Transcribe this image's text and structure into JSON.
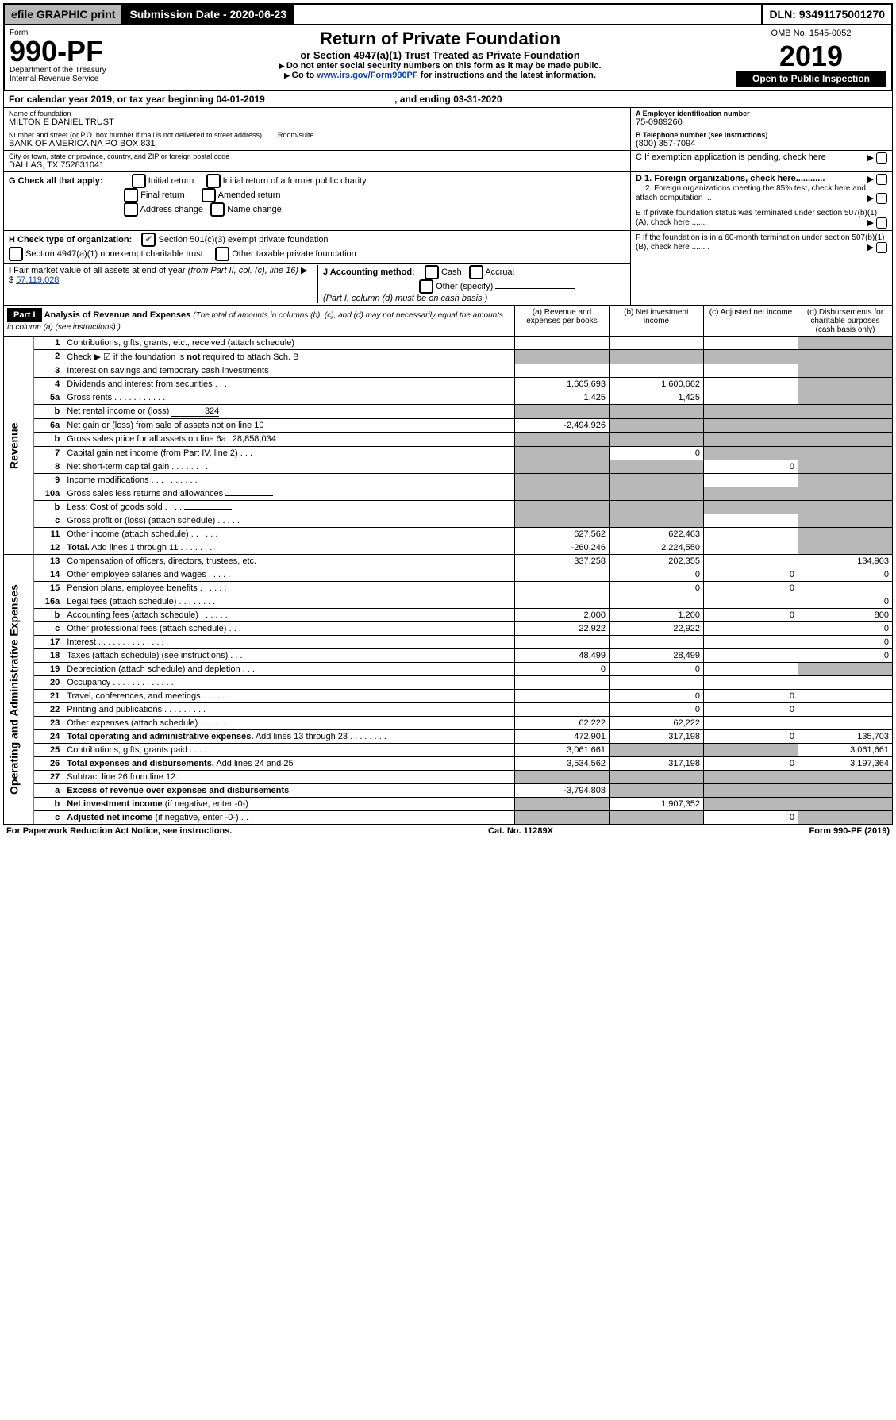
{
  "topbar": {
    "efile": "efile GRAPHIC print",
    "submission_label": "Submission Date - 2020-06-23",
    "dln": "DLN: 93491175001270"
  },
  "header": {
    "form_word": "Form",
    "form_no": "990-PF",
    "dept": "Department of the Treasury",
    "irs": "Internal Revenue Service",
    "title": "Return of Private Foundation",
    "subtitle": "or Section 4947(a)(1) Trust Treated as Private Foundation",
    "note1": "Do not enter social security numbers on this form as it may be made public.",
    "note2_prefix": "Go to ",
    "note2_link": "www.irs.gov/Form990PF",
    "note2_suffix": " for instructions and the latest information.",
    "omb": "OMB No. 1545-0052",
    "year": "2019",
    "open_inspect": "Open to Public Inspection"
  },
  "cal_year": {
    "prefix": "For calendar year 2019, or tax year beginning ",
    "begin": "04-01-2019",
    "mid": " , and ending ",
    "end": "03-31-2020"
  },
  "entity": {
    "name_label": "Name of foundation",
    "name": "MILTON E DANIEL TRUST",
    "addr_label": "Number and street (or P.O. box number if mail is not delivered to street address)",
    "addr": "BANK OF AMERICA NA PO BOX 831",
    "room_label": "Room/suite",
    "city_label": "City or town, state or province, country, and ZIP or foreign postal code",
    "city": "DALLAS, TX  752831041",
    "ein_label": "A Employer identification number",
    "ein": "75-0989260",
    "tel_label": "B Telephone number (see instructions)",
    "tel": "(800) 357-7094",
    "c_label": "C If exemption application is pending, check here",
    "d1_label": "D 1. Foreign organizations, check here............",
    "d2_label": "2. Foreign organizations meeting the 85% test, check here and attach computation ...",
    "e_label": "E  If private foundation status was terminated under section 507(b)(1)(A), check here .......",
    "f_label": "F  If the foundation is in a 60-month termination under section 507(b)(1)(B), check here ........"
  },
  "g": {
    "label": "G Check all that apply:",
    "opts": [
      "Initial return",
      "Initial return of a former public charity",
      "Final return",
      "Amended return",
      "Address change",
      "Name change"
    ]
  },
  "h": {
    "label": "H Check type of organization:",
    "opt1": "Section 501(c)(3) exempt private foundation",
    "opt2": "Section 4947(a)(1) nonexempt charitable trust",
    "opt3": "Other taxable private foundation"
  },
  "i": {
    "label": "I Fair market value of all assets at end of year (from Part II, col. (c), line 16) ▶ $",
    "value": "57,119,028"
  },
  "j": {
    "label": "J Accounting method:",
    "cash": "Cash",
    "accrual": "Accrual",
    "other": "Other (specify)",
    "note": "(Part I, column (d) must be on cash basis.)"
  },
  "part1": {
    "label": "Part I",
    "title": "Analysis of Revenue and Expenses",
    "title_note": "(The total of amounts in columns (b), (c), and (d) may not necessarily equal the amounts in column (a) (see instructions).)",
    "col_a": "(a)   Revenue and expenses per books",
    "col_b": "(b)  Net investment income",
    "col_c": "(c)  Adjusted net income",
    "col_d": "(d)  Disbursements for charitable purposes (cash basis only)",
    "side_revenue": "Revenue",
    "side_expenses": "Operating and Administrative Expenses"
  },
  "rows": [
    {
      "no": "1",
      "desc": "Contributions, gifts, grants, etc., received (attach schedule)",
      "a": "",
      "b": "",
      "c": "",
      "d": "sh"
    },
    {
      "no": "2",
      "desc": "Check ▶ ☑ if the foundation is <b>not</b> required to attach Sch. B",
      "a": "sh",
      "b": "sh",
      "c": "sh",
      "d": "sh",
      "checkmark": true
    },
    {
      "no": "3",
      "desc": "Interest on savings and temporary cash investments",
      "a": "",
      "b": "",
      "c": "",
      "d": "sh"
    },
    {
      "no": "4",
      "desc": "Dividends and interest from securities   .  .  .",
      "a": "1,605,693",
      "b": "1,600,662",
      "c": "",
      "d": "sh"
    },
    {
      "no": "5a",
      "desc": "Gross rents       .  .  .  .  .  .  .  .  .  .  .",
      "a": "1,425",
      "b": "1,425",
      "c": "",
      "d": "sh"
    },
    {
      "no": "b",
      "desc": "Net rental income or (loss)",
      "a": "sh",
      "b": "sh",
      "c": "sh",
      "d": "sh",
      "inline": "324"
    },
    {
      "no": "6a",
      "desc": "Net gain or (loss) from sale of assets not on line 10",
      "a": "-2,494,926",
      "b": "sh",
      "c": "sh",
      "d": "sh"
    },
    {
      "no": "b",
      "desc": "Gross sales price for all assets on line 6a",
      "a": "sh",
      "b": "sh",
      "c": "sh",
      "d": "sh",
      "inline": "28,858,034"
    },
    {
      "no": "7",
      "desc": "Capital gain net income (from Part IV, line 2)   .  .  .",
      "a": "sh",
      "b": "0",
      "c": "sh",
      "d": "sh"
    },
    {
      "no": "8",
      "desc": "Net short-term capital gain   .  .  .  .  .  .  .  .",
      "a": "sh",
      "b": "sh",
      "c": "0",
      "d": "sh"
    },
    {
      "no": "9",
      "desc": "Income modifications .  .  .  .  .  .  .  .  .  .",
      "a": "sh",
      "b": "sh",
      "c": "",
      "d": "sh"
    },
    {
      "no": "10a",
      "desc": "Gross sales less returns and allowances",
      "a": "sh",
      "b": "sh",
      "c": "sh",
      "d": "sh",
      "inline": " "
    },
    {
      "no": "b",
      "desc": "Less: Cost of goods sold      .  .  .  .",
      "a": "sh",
      "b": "sh",
      "c": "sh",
      "d": "sh",
      "inline": " "
    },
    {
      "no": "c",
      "desc": "Gross profit or (loss) (attach schedule)    .  .  .  .  .",
      "a": "sh",
      "b": "sh",
      "c": "",
      "d": "sh"
    },
    {
      "no": "11",
      "desc": "Other income (attach schedule)    .  .  .  .  .  .",
      "a": "627,562",
      "b": "622,463",
      "c": "",
      "d": "sh"
    },
    {
      "no": "12",
      "desc": "<b>Total.</b> Add lines 1 through 11   .  .  .  .  .  .  .",
      "a": "-260,246",
      "b": "2,224,550",
      "c": "",
      "d": "sh"
    }
  ],
  "exp_rows": [
    {
      "no": "13",
      "desc": "Compensation of officers, directors, trustees, etc.",
      "a": "337,258",
      "b": "202,355",
      "c": "",
      "d": "134,903"
    },
    {
      "no": "14",
      "desc": "Other employee salaries and wages    .  .  .  .  .",
      "a": "",
      "b": "0",
      "c": "0",
      "d": "0"
    },
    {
      "no": "15",
      "desc": "Pension plans, employee benefits  .  .  .  .  .  .",
      "a": "",
      "b": "0",
      "c": "0",
      "d": ""
    },
    {
      "no": "16a",
      "desc": "Legal fees (attach schedule) .  .  .  .  .  .  .  .",
      "a": "",
      "b": "",
      "c": "",
      "d": "0"
    },
    {
      "no": "b",
      "desc": "Accounting fees (attach schedule)  .  .  .  .  .  .",
      "a": "2,000",
      "b": "1,200",
      "c": "0",
      "d": "800"
    },
    {
      "no": "c",
      "desc": "Other professional fees (attach schedule)    .  .  .",
      "a": "22,922",
      "b": "22,922",
      "c": "",
      "d": "0"
    },
    {
      "no": "17",
      "desc": "Interest   .  .  .  .  .  .  .  .  .  .  .  .  .  .",
      "a": "",
      "b": "",
      "c": "",
      "d": "0"
    },
    {
      "no": "18",
      "desc": "Taxes (attach schedule) (see instructions)    .  .  .",
      "a": "48,499",
      "b": "28,499",
      "c": "",
      "d": "0"
    },
    {
      "no": "19",
      "desc": "Depreciation (attach schedule) and depletion   .  .  .",
      "a": "0",
      "b": "0",
      "c": "",
      "d": "sh"
    },
    {
      "no": "20",
      "desc": "Occupancy .  .  .  .  .  .  .  .  .  .  .  .  .",
      "a": "",
      "b": "",
      "c": "",
      "d": ""
    },
    {
      "no": "21",
      "desc": "Travel, conferences, and meetings .  .  .  .  .  .",
      "a": "",
      "b": "0",
      "c": "0",
      "d": ""
    },
    {
      "no": "22",
      "desc": "Printing and publications .  .  .  .  .  .  .  .  .",
      "a": "",
      "b": "0",
      "c": "0",
      "d": ""
    },
    {
      "no": "23",
      "desc": "Other expenses (attach schedule)  .  .  .  .  .  .",
      "a": "62,222",
      "b": "62,222",
      "c": "",
      "d": ""
    },
    {
      "no": "24",
      "desc": "<b>Total operating and administrative expenses.</b> Add lines 13 through 23  .  .  .  .  .  .  .  .  .",
      "a": "472,901",
      "b": "317,198",
      "c": "0",
      "d": "135,703"
    },
    {
      "no": "25",
      "desc": "Contributions, gifts, grants paid       .  .  .  .  .",
      "a": "3,061,661",
      "b": "sh",
      "c": "sh",
      "d": "3,061,661"
    },
    {
      "no": "26",
      "desc": "<b>Total expenses and disbursements.</b> Add lines 24 and 25",
      "a": "3,534,562",
      "b": "317,198",
      "c": "0",
      "d": "3,197,364"
    },
    {
      "no": "27",
      "desc": "Subtract line 26 from line 12:",
      "a": "sh",
      "b": "sh",
      "c": "sh",
      "d": "sh"
    },
    {
      "no": "a",
      "desc": "<b>Excess of revenue over expenses and disbursements</b>",
      "a": "-3,794,808",
      "b": "sh",
      "c": "sh",
      "d": "sh"
    },
    {
      "no": "b",
      "desc": "<b>Net investment income</b> (if negative, enter -0-)",
      "a": "sh",
      "b": "1,907,352",
      "c": "sh",
      "d": "sh"
    },
    {
      "no": "c",
      "desc": "<b>Adjusted net income</b> (if negative, enter -0-)    .  .  .",
      "a": "sh",
      "b": "sh",
      "c": "0",
      "d": "sh"
    }
  ],
  "footer": {
    "left": "For Paperwork Reduction Act Notice, see instructions.",
    "mid": "Cat. No. 11289X",
    "right": "Form 990-PF (2019)"
  },
  "colors": {
    "shaded": "#b8b8b8",
    "check_green": "#2e7d32",
    "link": "#0645ad"
  }
}
